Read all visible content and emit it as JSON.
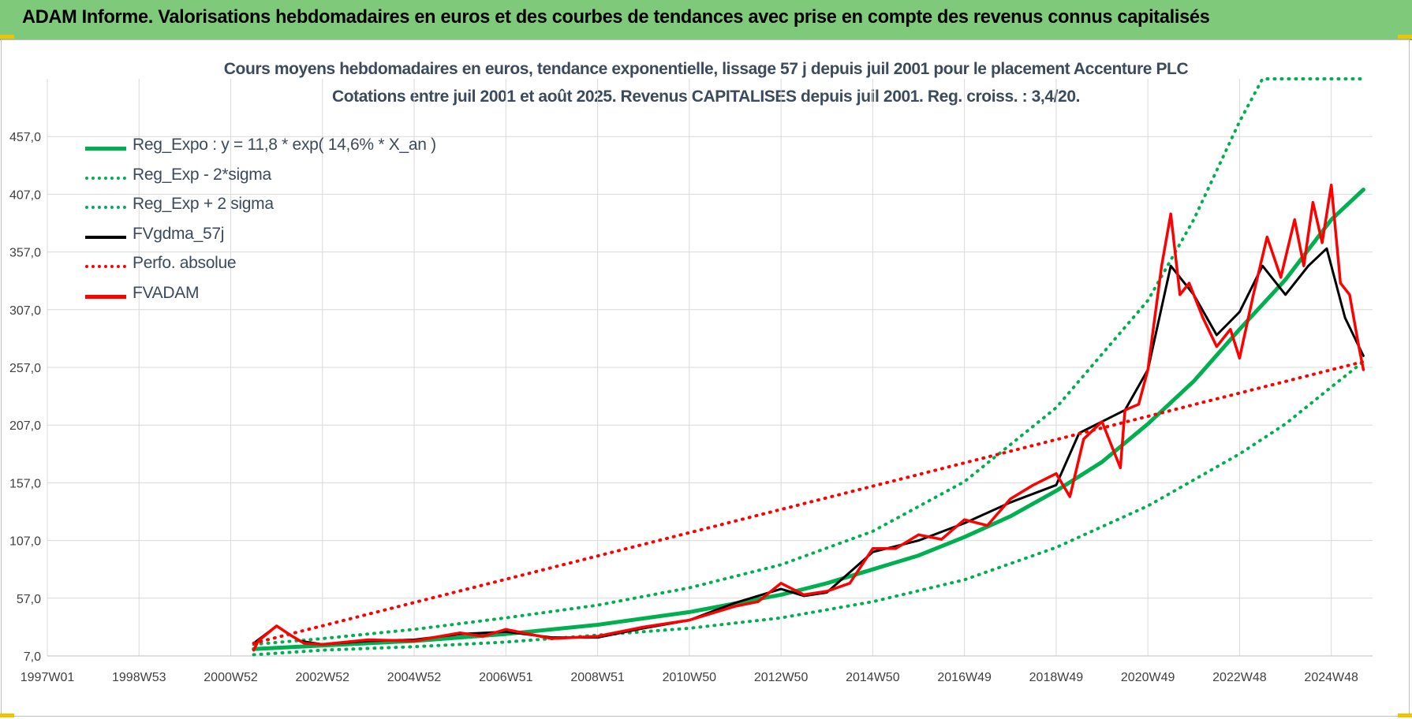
{
  "banner": {
    "title": "ADAM Informe. Valorisations hebdomadaires en euros et des courbes de tendances avec prise en compte des revenus connus capitalisés"
  },
  "colors": {
    "banner_bg": "#7fc97a",
    "reg_expo": "#00b050",
    "fvgdma": "#000000",
    "fvadam": "#ff0000",
    "grid": "#d9d9d9",
    "title_text": "#3b4a5c"
  },
  "chart_data": {
    "type": "line",
    "title": "Cours moyens hebdomadaires en euros, tendance exponentielle, lissage 57 j depuis juil 2001 pour le placement Accenture PLC",
    "subtitle": "Cotations entre juil 2001 et août 2025. Revenus CAPITALISES depuis juil 2001. Reg. croiss. : 3,4/20.",
    "xlabel": "",
    "ylabel": "",
    "xlim": [
      1997.0,
      2025.7
    ],
    "ylim": [
      7.0,
      507.0
    ],
    "grid": true,
    "legend_position": "top-left",
    "y_ticks": [
      "7,0",
      "57,0",
      "107,0",
      "157,0",
      "207,0",
      "257,0",
      "307,0",
      "357,0",
      "407,0",
      "457,0"
    ],
    "y_tick_values": [
      7,
      57,
      107,
      157,
      207,
      257,
      307,
      357,
      407,
      457
    ],
    "x_ticks": [
      "1997W01",
      "1998W53",
      "2000W52",
      "2002W52",
      "2004W52",
      "2006W51",
      "2008W51",
      "2010W50",
      "2012W50",
      "2014W50",
      "2016W49",
      "2018W49",
      "2020W49",
      "2022W48",
      "2024W48"
    ],
    "x_tick_values": [
      1997.0,
      1999.0,
      2001.0,
      2003.0,
      2005.0,
      2007.0,
      2009.0,
      2011.0,
      2013.0,
      2015.0,
      2017.0,
      2019.0,
      2021.0,
      2023.0,
      2025.0
    ],
    "series": [
      {
        "name": "Reg_Expo : y = 11,8 * exp( 14,6% *  X_an )",
        "style": "solid",
        "color": "#00b050",
        "x": [
          2001.5,
          2003,
          2005,
          2007,
          2009,
          2011,
          2013,
          2014,
          2015,
          2016,
          2017,
          2018,
          2019,
          2020,
          2021,
          2022,
          2023,
          2024,
          2025,
          2025.7
        ],
        "values": [
          13,
          16,
          20,
          26,
          34,
          45,
          60,
          70,
          82,
          94,
          110,
          128,
          150,
          175,
          208,
          245,
          290,
          333,
          385,
          411
        ]
      },
      {
        "name": "Reg_Exp - 2*sigma",
        "style": "dotted",
        "color": "#00b050",
        "x": [
          2001.5,
          2003,
          2005,
          2007,
          2009,
          2011,
          2013,
          2015,
          2017,
          2019,
          2021,
          2023,
          2024,
          2025,
          2025.7
        ],
        "values": [
          8,
          12,
          15,
          19,
          25,
          31,
          40,
          54,
          73,
          101,
          137,
          182,
          208,
          240,
          262
        ]
      },
      {
        "name": "Reg_Exp + 2 sigma",
        "style": "dotted",
        "color": "#00b050",
        "x": [
          2001.5,
          2003,
          2005,
          2007,
          2009,
          2011,
          2013,
          2015,
          2017,
          2019,
          2021,
          2022,
          2023,
          2023.5,
          2025.7
        ],
        "values": [
          17,
          22,
          30,
          40,
          51,
          66,
          86,
          115,
          158,
          222,
          315,
          385,
          470,
          507,
          507
        ]
      },
      {
        "name": "FVgdma_57j",
        "style": "solid",
        "color": "#000000",
        "x": [
          2001.5,
          2002,
          2002.5,
          2003,
          2004,
          2005,
          2006,
          2007,
          2008,
          2009,
          2010,
          2011,
          2012,
          2013,
          2013.5,
          2014,
          2015,
          2016,
          2017,
          2018,
          2019,
          2019.5,
          2020,
          2020.5,
          2021,
          2021.5,
          2022,
          2022.5,
          2023,
          2023.5,
          2024,
          2024.5,
          2024.9,
          2025.3,
          2025.7
        ],
        "values": [
          18,
          33,
          20,
          17,
          20,
          21,
          26,
          28,
          23,
          23,
          31,
          38,
          53,
          65,
          59,
          62,
          97,
          107,
          122,
          140,
          155,
          200,
          210,
          220,
          255,
          345,
          320,
          285,
          305,
          345,
          320,
          345,
          360,
          300,
          267
        ]
      },
      {
        "name": "Perfo. absolue",
        "style": "dotted",
        "color": "#ff0000",
        "x": [
          2001.5,
          2025.7
        ],
        "values": [
          18,
          262
        ]
      },
      {
        "name": "FVADAM",
        "style": "solid",
        "color": "#ff0000",
        "x": [
          2001.5,
          2001.6,
          2002,
          2002.3,
          2002.6,
          2003,
          2004,
          2005,
          2006,
          2006.5,
          2007,
          2008,
          2009,
          2010,
          2011,
          2012,
          2012.5,
          2013,
          2013.5,
          2014,
          2014.5,
          2015,
          2015.5,
          2016,
          2016.5,
          2017,
          2017.5,
          2018,
          2018.5,
          2019,
          2019.3,
          2019.6,
          2020,
          2020.4,
          2020.5,
          2020.8,
          2021,
          2021.3,
          2021.5,
          2021.7,
          2021.9,
          2022.2,
          2022.5,
          2022.8,
          2023,
          2023.3,
          2023.6,
          2023.9,
          2024.2,
          2024.4,
          2024.6,
          2024.8,
          2025.0,
          2025.2,
          2025.4,
          2025.6,
          2025.7
        ],
        "values": [
          12,
          20,
          33,
          25,
          18,
          17,
          21,
          20,
          27,
          24,
          30,
          22,
          24,
          32,
          38,
          50,
          54,
          70,
          60,
          63,
          70,
          100,
          100,
          112,
          108,
          125,
          120,
          143,
          155,
          165,
          145,
          195,
          210,
          170,
          220,
          225,
          255,
          345,
          390,
          320,
          330,
          300,
          275,
          290,
          265,
          320,
          370,
          335,
          385,
          345,
          400,
          365,
          415,
          330,
          320,
          275,
          255
        ]
      }
    ]
  }
}
